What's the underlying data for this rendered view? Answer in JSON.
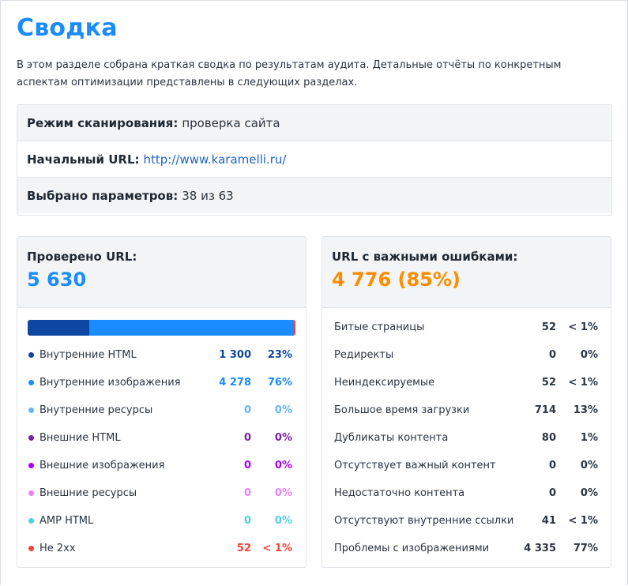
{
  "page": {
    "title": "Сводка",
    "intro": "В этом разделе собрана краткая сводка по результатам аудита. Детальные отчёты по конкретным аспектам оптимизации представлены в следующих разделах."
  },
  "info": {
    "mode_label": "Режим сканирования:",
    "mode_value": "проверка сайта",
    "url_label": "Начальный URL:",
    "url_value": "http://www.karamelli.ru/",
    "params_label": "Выбрано параметров:",
    "params_value": "38 из 63"
  },
  "checked": {
    "title": "Проверено URL:",
    "value": "5 630",
    "items": [
      {
        "label": "Внутренние HTML",
        "count": "1 300",
        "pct": "23%",
        "color": "#0d47a1",
        "share": 0.23
      },
      {
        "label": "Внутренние изображения",
        "count": "4 278",
        "pct": "76%",
        "color": "#1a8cff",
        "share": 0.76
      },
      {
        "label": "Внутренние ресурсы",
        "count": "0",
        "pct": "0%",
        "color": "#64b5f6",
        "share": 0
      },
      {
        "label": "Внешние HTML",
        "count": "0",
        "pct": "0%",
        "color": "#7b1fa2",
        "share": 0
      },
      {
        "label": "Внешние изображения",
        "count": "0",
        "pct": "0%",
        "color": "#aa00ff",
        "share": 0
      },
      {
        "label": "Внешние ресурсы",
        "count": "0",
        "pct": "0%",
        "color": "#ea80fc",
        "share": 0
      },
      {
        "label": "AMP HTML",
        "count": "0",
        "pct": "0%",
        "color": "#4dd0e1",
        "share": 0
      },
      {
        "label": "Не 2xx",
        "count": "52",
        "pct": "< 1%",
        "color": "#f44336",
        "share": 0.0092
      }
    ]
  },
  "errors": {
    "title": "URL с важными ошибками:",
    "value": "4 776 (85%)",
    "items": [
      {
        "label": "Битые страницы",
        "count": "52",
        "pct": "< 1%"
      },
      {
        "label": "Редиректы",
        "count": "0",
        "pct": "0%"
      },
      {
        "label": "Неиндексируемые",
        "count": "52",
        "pct": "< 1%"
      },
      {
        "label": "Большое время загрузки",
        "count": "714",
        "pct": "13%"
      },
      {
        "label": "Дубликаты контента",
        "count": "80",
        "pct": "1%"
      },
      {
        "label": "Отсутствует важный контент",
        "count": "0",
        "pct": "0%"
      },
      {
        "label": "Недостаточно контента",
        "count": "0",
        "pct": "0%"
      },
      {
        "label": "Отсутствуют внутренние ссылки",
        "count": "41",
        "pct": "< 1%"
      },
      {
        "label": "Проблемы с изображениями",
        "count": "4 335",
        "pct": "77%"
      }
    ]
  }
}
